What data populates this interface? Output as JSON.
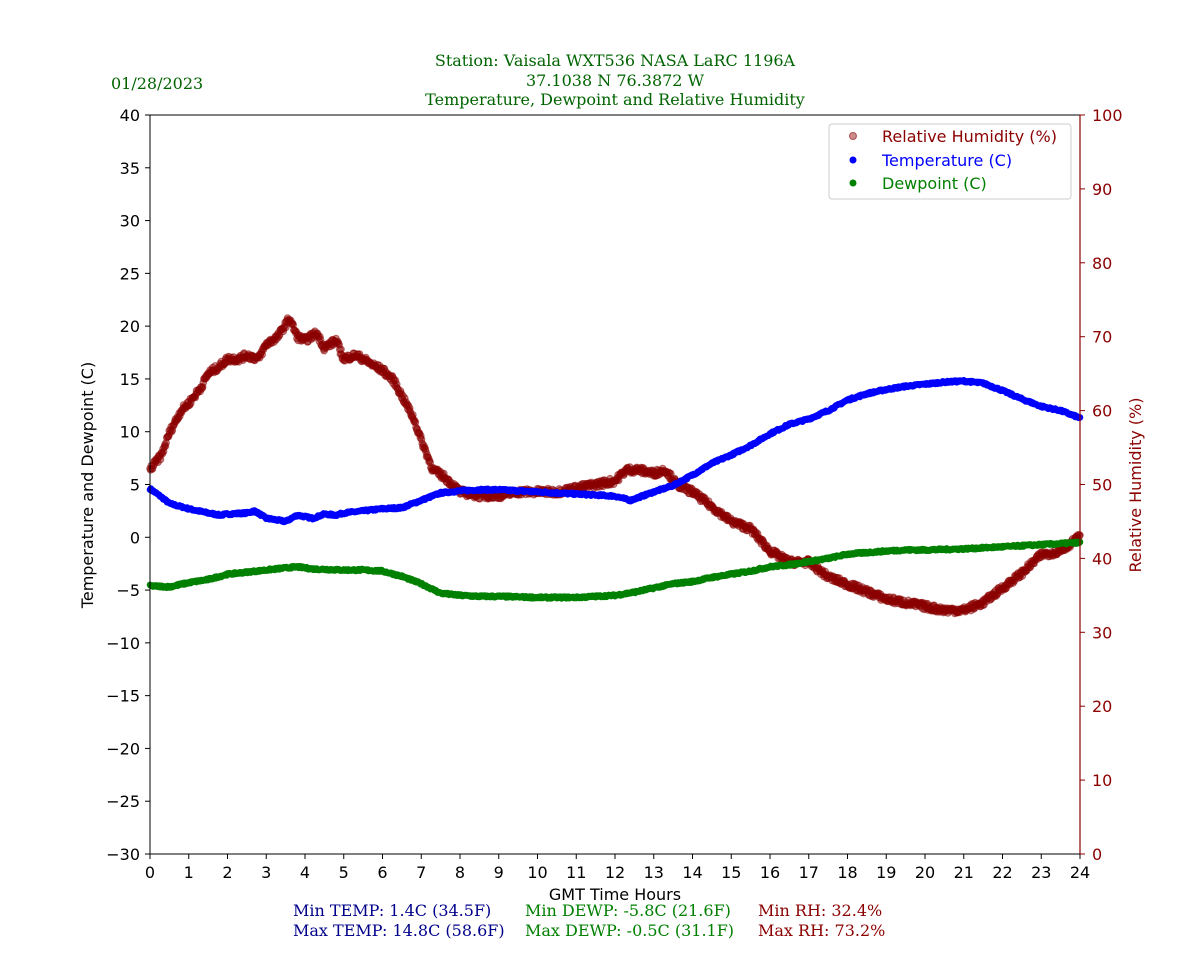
{
  "header": {
    "date": "01/28/2023",
    "title_line1": "Station:  Vaisala WXT536  NASA LaRC 1196A",
    "title_line2": "37.1038 N 76.3872 W",
    "title_line3": "Temperature, Dewpoint and Relative Humidity"
  },
  "colors": {
    "title": "#006400",
    "temperature": "#0000ff",
    "dewpoint": "#008000",
    "humidity": "#8b0000",
    "temp_stats": "#00008b"
  },
  "chart_data": {
    "type": "scatter",
    "xlabel": "GMT Time Hours",
    "ylabel_left": "Temperature and Dewpoint (C)",
    "ylabel_right": "Relative Humidity (%)",
    "xlim": [
      0,
      24
    ],
    "ylim_left": [
      -30,
      40
    ],
    "ylim_right": [
      0,
      100
    ],
    "x_ticks": [
      "0",
      "1",
      "2",
      "3",
      "4",
      "5",
      "6",
      "7",
      "8",
      "9",
      "10",
      "11",
      "12",
      "13",
      "14",
      "15",
      "16",
      "17",
      "18",
      "19",
      "20",
      "21",
      "22",
      "23",
      "24"
    ],
    "y_left_ticks": [
      "40",
      "35",
      "30",
      "25",
      "20",
      "15",
      "10",
      "5",
      "0",
      "−5",
      "−10",
      "−15",
      "−20",
      "−25",
      "−30"
    ],
    "y_right_ticks": [
      "100",
      "90",
      "80",
      "70",
      "60",
      "50",
      "40",
      "30",
      "20",
      "10",
      "0"
    ],
    "legend": [
      {
        "label": "Relative Humidity (%)",
        "series": "rh"
      },
      {
        "label": "Temperature (C)",
        "series": "temp"
      },
      {
        "label": "Dewpoint (C)",
        "series": "dewp"
      }
    ],
    "series": [
      {
        "name": "Temperature (C)",
        "key": "temp",
        "axis": "left",
        "points": [
          [
            0,
            4.6
          ],
          [
            0.3,
            3.8
          ],
          [
            0.5,
            3.2
          ],
          [
            1,
            2.7
          ],
          [
            1.5,
            2.3
          ],
          [
            1.8,
            2.1
          ],
          [
            2,
            2.2
          ],
          [
            2.5,
            2.3
          ],
          [
            2.7,
            2.5
          ],
          [
            3,
            1.8
          ],
          [
            3.5,
            1.5
          ],
          [
            3.8,
            2.1
          ],
          [
            4.2,
            1.8
          ],
          [
            4.5,
            2.2
          ],
          [
            4.8,
            2.1
          ],
          [
            5,
            2.3
          ],
          [
            5.5,
            2.5
          ],
          [
            6,
            2.7
          ],
          [
            6.5,
            2.8
          ],
          [
            7,
            3.5
          ],
          [
            7.5,
            4.2
          ],
          [
            8,
            4.4
          ],
          [
            8.5,
            4.5
          ],
          [
            9,
            4.5
          ],
          [
            9.5,
            4.4
          ],
          [
            10,
            4.3
          ],
          [
            10.5,
            4.2
          ],
          [
            11,
            4.1
          ],
          [
            11.5,
            4.0
          ],
          [
            12,
            3.9
          ],
          [
            12.4,
            3.5
          ],
          [
            13,
            4.3
          ],
          [
            13.5,
            4.9
          ],
          [
            14,
            5.9
          ],
          [
            14.5,
            7.0
          ],
          [
            15,
            7.8
          ],
          [
            15.5,
            8.7
          ],
          [
            16,
            9.8
          ],
          [
            16.5,
            10.7
          ],
          [
            17,
            11.2
          ],
          [
            17.5,
            12.0
          ],
          [
            18,
            13.0
          ],
          [
            18.5,
            13.6
          ],
          [
            19,
            14.0
          ],
          [
            19.5,
            14.3
          ],
          [
            20,
            14.5
          ],
          [
            20.5,
            14.7
          ],
          [
            21,
            14.8
          ],
          [
            21.5,
            14.6
          ],
          [
            22,
            13.9
          ],
          [
            22.5,
            13.1
          ],
          [
            23,
            12.4
          ],
          [
            23.5,
            12.0
          ],
          [
            24,
            11.3
          ]
        ]
      },
      {
        "name": "Dewpoint (C)",
        "key": "dewp",
        "axis": "left",
        "points": [
          [
            0,
            -4.6
          ],
          [
            0.5,
            -4.7
          ],
          [
            1,
            -4.3
          ],
          [
            1.5,
            -4.0
          ],
          [
            2,
            -3.5
          ],
          [
            2.5,
            -3.3
          ],
          [
            3,
            -3.1
          ],
          [
            3.5,
            -2.9
          ],
          [
            3.8,
            -2.8
          ],
          [
            4.2,
            -3.0
          ],
          [
            5,
            -3.1
          ],
          [
            5.5,
            -3.1
          ],
          [
            6,
            -3.2
          ],
          [
            6.5,
            -3.7
          ],
          [
            7,
            -4.4
          ],
          [
            7.5,
            -5.3
          ],
          [
            8,
            -5.5
          ],
          [
            8.5,
            -5.6
          ],
          [
            9,
            -5.6
          ],
          [
            10,
            -5.7
          ],
          [
            11,
            -5.7
          ],
          [
            11.5,
            -5.6
          ],
          [
            12,
            -5.5
          ],
          [
            12.5,
            -5.2
          ],
          [
            13,
            -4.8
          ],
          [
            13.5,
            -4.4
          ],
          [
            14,
            -4.2
          ],
          [
            14.5,
            -3.8
          ],
          [
            15,
            -3.5
          ],
          [
            15.5,
            -3.2
          ],
          [
            16,
            -2.8
          ],
          [
            16.5,
            -2.6
          ],
          [
            17,
            -2.3
          ],
          [
            17.5,
            -2.0
          ],
          [
            18,
            -1.6
          ],
          [
            19,
            -1.3
          ],
          [
            19.5,
            -1.2
          ],
          [
            20,
            -1.2
          ],
          [
            21,
            -1.1
          ],
          [
            22,
            -0.9
          ],
          [
            23,
            -0.7
          ],
          [
            24,
            -0.5
          ]
        ]
      },
      {
        "name": "Relative Humidity (%)",
        "key": "rh",
        "axis": "right",
        "points": [
          [
            0,
            52
          ],
          [
            0.3,
            54
          ],
          [
            0.5,
            57
          ],
          [
            0.8,
            60
          ],
          [
            1,
            61
          ],
          [
            1.3,
            63
          ],
          [
            1.5,
            65
          ],
          [
            1.8,
            66
          ],
          [
            2,
            67
          ],
          [
            2.3,
            67
          ],
          [
            2.5,
            67.5
          ],
          [
            2.8,
            67
          ],
          [
            3,
            69
          ],
          [
            3.3,
            70
          ],
          [
            3.6,
            72.5
          ],
          [
            3.8,
            70
          ],
          [
            4,
            69.5
          ],
          [
            4.3,
            70.5
          ],
          [
            4.5,
            68.5
          ],
          [
            4.8,
            69.5
          ],
          [
            5,
            67
          ],
          [
            5.3,
            67.5
          ],
          [
            5.5,
            67
          ],
          [
            5.8,
            66
          ],
          [
            6,
            65.5
          ],
          [
            6.3,
            64
          ],
          [
            6.5,
            62
          ],
          [
            6.8,
            59
          ],
          [
            7,
            56
          ],
          [
            7.3,
            52
          ],
          [
            7.6,
            51
          ],
          [
            8,
            49
          ],
          [
            8.5,
            48.5
          ],
          [
            9,
            48.5
          ],
          [
            9.5,
            49
          ],
          [
            10,
            49
          ],
          [
            10.5,
            49
          ],
          [
            11,
            49.5
          ],
          [
            11.5,
            50
          ],
          [
            12,
            50.5
          ],
          [
            12.3,
            52
          ],
          [
            12.6,
            52
          ],
          [
            13,
            51.5
          ],
          [
            13.3,
            52
          ],
          [
            13.6,
            50
          ],
          [
            14,
            49
          ],
          [
            14.5,
            47
          ],
          [
            15,
            45
          ],
          [
            15.5,
            44
          ],
          [
            16,
            41
          ],
          [
            16.5,
            39.5
          ],
          [
            17,
            39.5
          ],
          [
            17.5,
            37.5
          ],
          [
            18,
            36.5
          ],
          [
            18.5,
            35.5
          ],
          [
            19,
            34.5
          ],
          [
            19.5,
            34
          ],
          [
            20,
            33.5
          ],
          [
            20.5,
            33
          ],
          [
            21,
            33
          ],
          [
            21.5,
            34
          ],
          [
            22,
            36
          ],
          [
            22.5,
            38
          ],
          [
            23,
            40.5
          ],
          [
            23.5,
            41
          ],
          [
            24,
            43
          ]
        ]
      }
    ]
  },
  "stats": {
    "min_temp": "Min TEMP: 1.4C (34.5F)",
    "max_temp": "Max TEMP: 14.8C (58.6F)",
    "min_dewp": "Min DEWP: -5.8C (21.6F)",
    "max_dewp": "Max DEWP: -0.5C (31.1F)",
    "min_rh": "Min RH: 32.4%",
    "max_rh": "Max RH: 73.2%"
  }
}
